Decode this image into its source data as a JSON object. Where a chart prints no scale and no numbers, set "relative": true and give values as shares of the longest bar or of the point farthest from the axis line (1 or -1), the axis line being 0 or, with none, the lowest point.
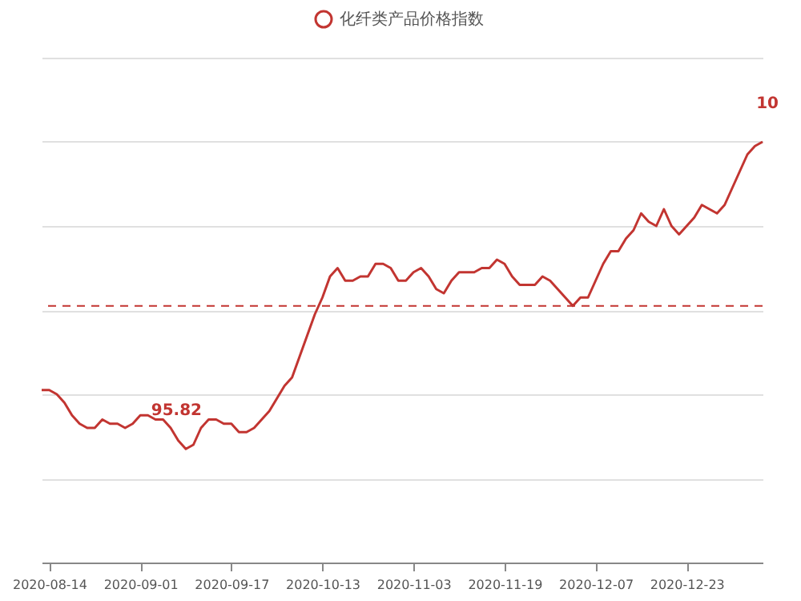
{
  "chart_data": {
    "type": "line",
    "relative": true,
    "categories": [
      null,
      "2020-08-14",
      null,
      null,
      null,
      null,
      null,
      null,
      null,
      null,
      null,
      null,
      null,
      "2020-09-01",
      null,
      null,
      null,
      null,
      null,
      null,
      null,
      null,
      null,
      null,
      null,
      "2020-09-17",
      null,
      null,
      null,
      null,
      null,
      null,
      null,
      null,
      null,
      null,
      null,
      "2020-10-13",
      null,
      null,
      null,
      null,
      null,
      null,
      null,
      null,
      null,
      null,
      null,
      "2020-11-03",
      null,
      null,
      null,
      null,
      null,
      null,
      null,
      null,
      null,
      null,
      null,
      "2020-11-19",
      null,
      null,
      null,
      null,
      null,
      null,
      null,
      null,
      null,
      null,
      null,
      "2020-12-07",
      null,
      null,
      null,
      null,
      null,
      null,
      null,
      null,
      null,
      null,
      null,
      "2020-12-23",
      null,
      null,
      null,
      null,
      null,
      null,
      null,
      null,
      null,
      null
    ],
    "series": [
      {
        "name": "化纤类产品价格指数",
        "color": "#c23531",
        "values": [
          0.41,
          0.41,
          0.4,
          0.38,
          0.35,
          0.33,
          0.32,
          0.32,
          0.34,
          0.33,
          0.33,
          0.32,
          0.33,
          0.35,
          0.35,
          0.34,
          0.34,
          0.32,
          0.29,
          0.27,
          0.28,
          0.32,
          0.34,
          0.34,
          0.33,
          0.33,
          0.31,
          0.31,
          0.32,
          0.34,
          0.36,
          0.39,
          0.42,
          0.44,
          0.49,
          0.54,
          0.59,
          0.63,
          0.68,
          0.7,
          0.67,
          0.67,
          0.68,
          0.68,
          0.71,
          0.71,
          0.7,
          0.67,
          0.67,
          0.69,
          0.7,
          0.68,
          0.65,
          0.64,
          0.67,
          0.69,
          0.69,
          0.69,
          0.7,
          0.7,
          0.72,
          0.71,
          0.68,
          0.66,
          0.66,
          0.66,
          0.68,
          0.67,
          0.65,
          0.63,
          0.61,
          0.63,
          0.63,
          0.67,
          0.71,
          0.74,
          0.74,
          0.77,
          0.79,
          0.83,
          0.81,
          0.8,
          0.84,
          0.8,
          0.78,
          0.8,
          0.82,
          0.85,
          0.84,
          0.83,
          0.85,
          0.89,
          0.93,
          0.97,
          0.99,
          1.0
        ]
      }
    ],
    "annotations": [
      "95.82",
      "10"
    ],
    "ref_lines": [
      {
        "axis": "y",
        "value": 0.61,
        "color": "#c23531",
        "line_style": "dashed"
      }
    ],
    "grid": "y",
    "legend": "top",
    "marker": "none",
    "line_style": "solid"
  }
}
